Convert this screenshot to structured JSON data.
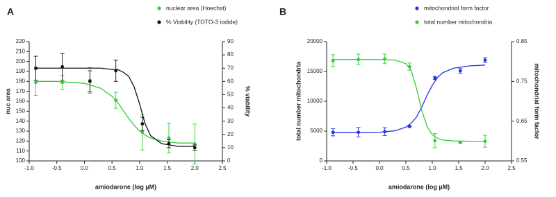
{
  "chart_data": [
    {
      "type": "scatter",
      "panel_label": "A",
      "xlabel": "amiodarone (log µM)",
      "ylabel": "nuc area",
      "y2label": "% viability",
      "xlim": [
        -1,
        2.5
      ],
      "xticks": [
        {
          "value": -1,
          "label": "-1.0"
        },
        -0.5,
        {
          "value": 0,
          "label": "0.0"
        },
        0.5,
        {
          "value": 1,
          "label": "1.0"
        },
        1.5,
        {
          "value": 2,
          "label": "2.0"
        },
        2.5
      ],
      "ylim": [
        100,
        220
      ],
      "yticks": [
        100,
        110,
        120,
        130,
        140,
        150,
        160,
        170,
        180,
        190,
        200,
        210,
        220
      ],
      "y2lim": [
        0,
        90
      ],
      "y2ticks": [
        0,
        10,
        20,
        30,
        40,
        50,
        60,
        70,
        80,
        90
      ],
      "legend": "top",
      "series": [
        {
          "name": "nuclear area (Hoechst)",
          "color": "#33cc33",
          "x": [
            -0.88,
            -0.4,
            0.1,
            0.57,
            1.05,
            1.53,
            2.0
          ],
          "values": [
            179,
            179,
            181,
            161,
            129,
            123,
            117
          ],
          "errors": [
            13,
            7,
            13,
            8,
            18,
            15,
            20
          ],
          "curve": {
            "x": [
              -0.9,
              -0.5,
              0,
              0.3,
              0.5,
              0.6,
              0.7,
              0.8,
              0.9,
              1.0,
              1.1,
              1.2,
              1.4,
              1.7,
              2.0
            ],
            "values": [
              180,
              180,
              178,
              173,
              165,
              159,
              151,
              143,
              136,
              130,
              126,
              123,
              120,
              118,
              118
            ]
          }
        },
        {
          "name": "% Viability (TOTO-3 iodide)",
          "color": "#111111",
          "axis": "y2",
          "x": [
            -0.88,
            -0.4,
            0.1,
            0.57,
            1.05,
            1.53,
            2.0
          ],
          "values": [
            70,
            71,
            60,
            68,
            28,
            13,
            10
          ],
          "errors": [
            9,
            10,
            8,
            8,
            5,
            3,
            2
          ],
          "curve": {
            "x": [
              -0.9,
              -0.5,
              0,
              0.3,
              0.5,
              0.6,
              0.7,
              0.8,
              0.9,
              1.0,
              1.1,
              1.2,
              1.4,
              1.7,
              2.0
            ],
            "values": [
              70,
              70,
              70,
              70,
              69,
              69,
              67,
              64,
              56,
              43,
              28,
              19,
              13,
              11,
              11
            ]
          }
        }
      ]
    },
    {
      "type": "scatter",
      "panel_label": "B",
      "xlabel": "amiodarone (log µM)",
      "ylabel": "total number mitochondria",
      "y2label": "mitochondrial form factor",
      "xlim": [
        -1,
        2.5
      ],
      "xticks": [
        {
          "value": -1,
          "label": "-1.0"
        },
        -0.5,
        {
          "value": 0,
          "label": "0.0"
        },
        0.5,
        {
          "value": 1,
          "label": "1.0"
        },
        1.5,
        {
          "value": 2,
          "label": "2.0"
        },
        2.5
      ],
      "ylim": [
        0,
        20000
      ],
      "yticks": [
        0,
        5000,
        10000,
        15000,
        20000
      ],
      "y2lim": [
        0.55,
        0.85
      ],
      "y2ticks": [
        0.55,
        0.65,
        0.75,
        0.85
      ],
      "legend": "top right",
      "series": [
        {
          "name": "mitochondrial form factor",
          "color": "#2233dd",
          "axis": "y2",
          "x": [
            -0.88,
            -0.4,
            0.1,
            0.57,
            1.05,
            1.53,
            2.0
          ],
          "values": [
            0.622,
            0.622,
            0.6235,
            0.637,
            0.7585,
            0.7765,
            0.8035
          ],
          "errors": [
            0.009,
            0.012,
            0.01,
            0.003,
            0.004,
            0.006,
            0.006
          ],
          "curve": {
            "x": [
              -0.9,
              -0.5,
              0,
              0.3,
              0.5,
              0.6,
              0.7,
              0.8,
              0.9,
              1.0,
              1.1,
              1.2,
              1.4,
              1.7,
              2.0
            ],
            "values": [
              0.621,
              0.621,
              0.622,
              0.626,
              0.635,
              0.645,
              0.66,
              0.685,
              0.715,
              0.74,
              0.76,
              0.772,
              0.783,
              0.789,
              0.791
            ]
          }
        },
        {
          "name": "total number mitochondria",
          "color": "#33cc33",
          "x": [
            -0.88,
            -0.4,
            0.1,
            0.57,
            1.05,
            1.53,
            2.0
          ],
          "values": [
            16800,
            17000,
            17100,
            15800,
            3400,
            3100,
            3300
          ],
          "errors": [
            1000,
            900,
            800,
            600,
            1200,
            100,
            1000
          ],
          "curve": {
            "x": [
              -0.9,
              -0.5,
              0,
              0.3,
              0.5,
              0.6,
              0.7,
              0.8,
              0.9,
              1.0,
              1.1,
              1.2,
              1.4,
              1.7,
              2.0
            ],
            "values": [
              17000,
              17000,
              17000,
              16900,
              16300,
              15200,
              12200,
              8500,
              5800,
              4400,
              3800,
              3500,
              3350,
              3300,
              3300
            ]
          }
        }
      ]
    }
  ]
}
